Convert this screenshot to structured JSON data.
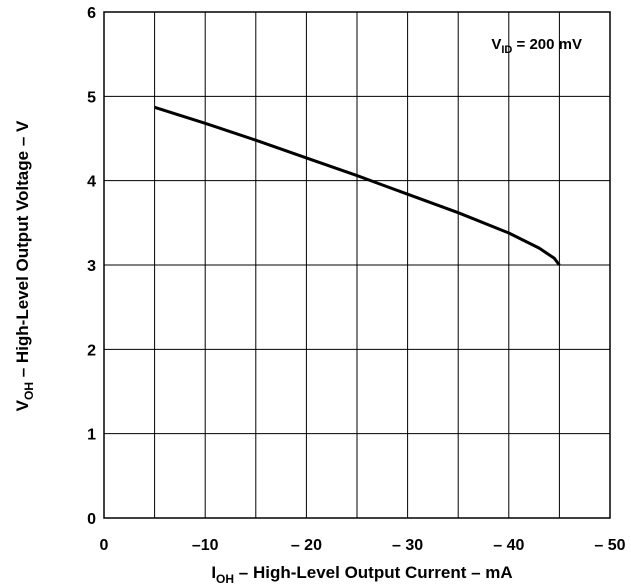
{
  "chart_data": {
    "type": "line",
    "xlabel": {
      "main": "I",
      "sub": "OH",
      "rest": " – High-Level Output Current – mA"
    },
    "ylabel": {
      "main": "V",
      "sub": "OH",
      "rest": " – High-Level Output Voltage – V"
    },
    "annotation": {
      "main": "V",
      "sub": "ID",
      "rest": " = 200 mV"
    },
    "xlim": [
      0,
      -50
    ],
    "ylim": [
      0,
      6
    ],
    "x_ticks": [
      0,
      -10,
      -20,
      -30,
      -40,
      -50
    ],
    "x_tick_labels": [
      "0",
      "–10",
      "– 20",
      "– 30",
      "– 40",
      "– 50"
    ],
    "y_ticks": [
      0,
      1,
      2,
      3,
      4,
      5,
      6
    ],
    "y_tick_labels": [
      "0",
      "1",
      "2",
      "3",
      "4",
      "5",
      "6"
    ],
    "grid": true,
    "series": [
      {
        "color": "#000000",
        "x": [
          -5,
          -10,
          -15,
          -20,
          -25,
          -30,
          -35,
          -40,
          -43,
          -44.5,
          -45
        ],
        "y": [
          4.87,
          4.68,
          4.48,
          4.27,
          4.06,
          3.84,
          3.62,
          3.38,
          3.2,
          3.08,
          3.0
        ]
      }
    ]
  }
}
